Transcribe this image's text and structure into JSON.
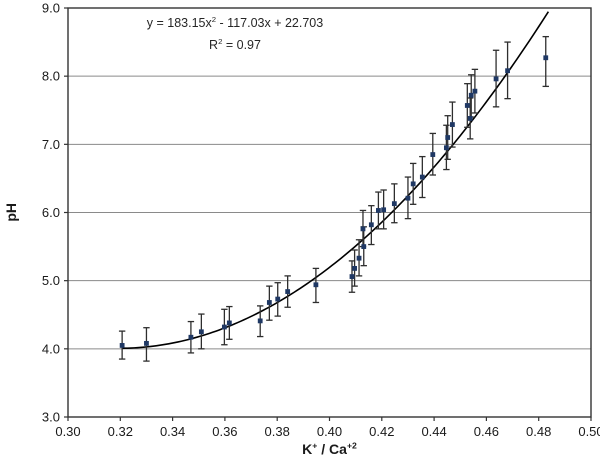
{
  "labels": {
    "eq_pre": "y = 183.15x",
    "eq_sup": "2",
    "eq_post": " - 117.03x + 22.703",
    "r2_pre": "R",
    "r2_sup": "2",
    "r2_post": " = 0.97",
    "ylabel": "pH",
    "x_pre": "K",
    "x_sup1": "+",
    "x_mid": " / Ca",
    "x_sup2": "+2"
  },
  "chart_data": {
    "type": "scatter",
    "title": "",
    "xlabel": "K⁺ / Ca⁺²",
    "ylabel": "pH",
    "annotation": [
      "y = 183.15x² - 117.03x + 22.703",
      "R² = 0.97"
    ],
    "xlim": [
      0.3,
      0.5
    ],
    "ylim": [
      3.0,
      9.0
    ],
    "grid": "horizontal",
    "legend": "none",
    "x_tick_values": [
      0.3,
      0.32,
      0.34,
      0.36,
      0.38,
      0.4,
      0.42,
      0.44,
      0.46,
      0.48,
      0.5
    ],
    "x_tick_labels": [
      "0.30",
      "0.32",
      "0.34",
      "0.36",
      "0.38",
      "0.40",
      "0.42",
      "0.44",
      "0.46",
      "0.48",
      "0.50"
    ],
    "y_tick_values": [
      3.0,
      4.0,
      5.0,
      6.0,
      7.0,
      8.0,
      9.0
    ],
    "y_tick_labels": [
      "3.0",
      "4.0",
      "5.0",
      "6.0",
      "7.0",
      "8.0",
      "9.0"
    ],
    "trendline": {
      "type": "quadratic",
      "a": 183.15,
      "b": -117.03,
      "c": 22.703,
      "r2": 0.97,
      "x_start": 0.3205,
      "x_end": 0.4849,
      "color": "#000000"
    },
    "marker_color": "#1f3864",
    "error_bar_color": "#2e2e2e",
    "grid_color": "#8a8a8a",
    "axis_color": "#333333",
    "points": [
      {
        "x": 0.3207,
        "y": 4.05,
        "lo": 3.85,
        "hi": 4.26
      },
      {
        "x": 0.33,
        "y": 4.08,
        "lo": 3.82,
        "hi": 4.31
      },
      {
        "x": 0.347,
        "y": 4.17,
        "lo": 3.94,
        "hi": 4.4
      },
      {
        "x": 0.351,
        "y": 4.25,
        "lo": 4.0,
        "hi": 4.51
      },
      {
        "x": 0.3598,
        "y": 4.32,
        "lo": 4.06,
        "hi": 4.58
      },
      {
        "x": 0.3617,
        "y": 4.38,
        "lo": 4.14,
        "hi": 4.62
      },
      {
        "x": 0.3735,
        "y": 4.41,
        "lo": 4.18,
        "hi": 4.63
      },
      {
        "x": 0.377,
        "y": 4.68,
        "lo": 4.42,
        "hi": 4.92
      },
      {
        "x": 0.3802,
        "y": 4.73,
        "lo": 4.48,
        "hi": 4.97
      },
      {
        "x": 0.384,
        "y": 4.84,
        "lo": 4.61,
        "hi": 5.07
      },
      {
        "x": 0.3948,
        "y": 4.94,
        "lo": 4.68,
        "hi": 5.18
      },
      {
        "x": 0.4086,
        "y": 5.06,
        "lo": 4.83,
        "hi": 5.29
      },
      {
        "x": 0.4096,
        "y": 5.18,
        "lo": 4.92,
        "hi": 5.45
      },
      {
        "x": 0.4113,
        "y": 5.33,
        "lo": 5.07,
        "hi": 5.6
      },
      {
        "x": 0.4131,
        "y": 5.5,
        "lo": 5.22,
        "hi": 5.79
      },
      {
        "x": 0.4128,
        "y": 5.76,
        "lo": 5.5,
        "hi": 6.03
      },
      {
        "x": 0.416,
        "y": 5.82,
        "lo": 5.53,
        "hi": 6.1
      },
      {
        "x": 0.4187,
        "y": 6.03,
        "lo": 5.76,
        "hi": 6.3
      },
      {
        "x": 0.4207,
        "y": 6.04,
        "lo": 5.76,
        "hi": 6.33
      },
      {
        "x": 0.4248,
        "y": 6.13,
        "lo": 5.85,
        "hi": 6.42
      },
      {
        "x": 0.43,
        "y": 6.21,
        "lo": 5.91,
        "hi": 6.52
      },
      {
        "x": 0.432,
        "y": 6.42,
        "lo": 6.12,
        "hi": 6.72
      },
      {
        "x": 0.4355,
        "y": 6.52,
        "lo": 6.22,
        "hi": 6.82
      },
      {
        "x": 0.4395,
        "y": 6.85,
        "lo": 6.55,
        "hi": 7.16
      },
      {
        "x": 0.4447,
        "y": 6.95,
        "lo": 6.63,
        "hi": 7.28
      },
      {
        "x": 0.4452,
        "y": 7.1,
        "lo": 6.78,
        "hi": 7.42
      },
      {
        "x": 0.447,
        "y": 7.29,
        "lo": 6.96,
        "hi": 7.62
      },
      {
        "x": 0.4538,
        "y": 7.38,
        "lo": 7.08,
        "hi": 7.68
      },
      {
        "x": 0.4527,
        "y": 7.57,
        "lo": 7.25,
        "hi": 7.89
      },
      {
        "x": 0.4542,
        "y": 7.72,
        "lo": 7.4,
        "hi": 8.02
      },
      {
        "x": 0.4556,
        "y": 7.78,
        "lo": 7.46,
        "hi": 8.1
      },
      {
        "x": 0.4637,
        "y": 7.96,
        "lo": 7.55,
        "hi": 8.38
      },
      {
        "x": 0.4681,
        "y": 8.08,
        "lo": 7.67,
        "hi": 8.5
      },
      {
        "x": 0.4827,
        "y": 8.27,
        "lo": 7.85,
        "hi": 8.58
      }
    ]
  }
}
